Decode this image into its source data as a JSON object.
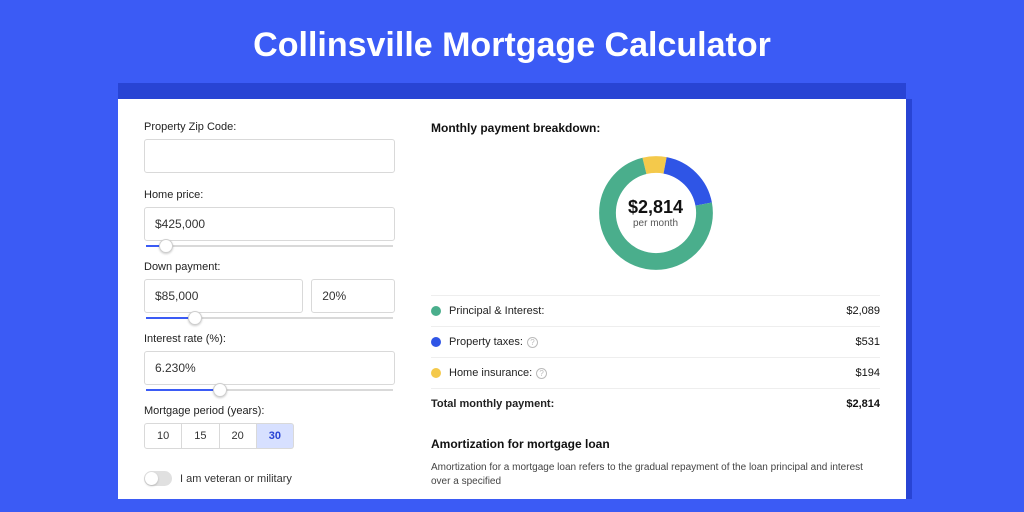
{
  "title": "Collinsville Mortgage Calculator",
  "form": {
    "zip": {
      "label": "Property Zip Code:",
      "value": ""
    },
    "home_price": {
      "label": "Home price:",
      "value": "$425,000",
      "slider_pct": 8
    },
    "down_payment": {
      "label": "Down payment:",
      "value": "$85,000",
      "pct_value": "20%",
      "slider_pct": 20
    },
    "interest_rate": {
      "label": "Interest rate (%):",
      "value": "6.230%",
      "slider_pct": 30
    },
    "period": {
      "label": "Mortgage period (years):",
      "options": [
        "10",
        "15",
        "20",
        "30"
      ],
      "selected_index": 3
    },
    "veteran": {
      "label": "I am veteran or military",
      "on": false
    }
  },
  "breakdown": {
    "title": "Monthly payment breakdown:",
    "center_amount": "$2,814",
    "center_sub": "per month",
    "items": [
      {
        "label": "Principal & Interest:",
        "value": "$2,089",
        "color": "#4aae8c",
        "pct": 74,
        "help": false
      },
      {
        "label": "Property taxes:",
        "value": "$531",
        "color": "#2f55e6",
        "pct": 19,
        "help": true
      },
      {
        "label": "Home insurance:",
        "value": "$194",
        "color": "#f4c94b",
        "pct": 7,
        "help": true
      }
    ],
    "total_label": "Total monthly payment:",
    "total_value": "$2,814"
  },
  "amortization": {
    "title": "Amortization for mortgage loan",
    "text": "Amortization for a mortgage loan refers to the gradual repayment of the loan principal and interest over a specified"
  },
  "colors": {
    "bg": "#3b5bf5",
    "header_shadow": "#2844d4"
  }
}
